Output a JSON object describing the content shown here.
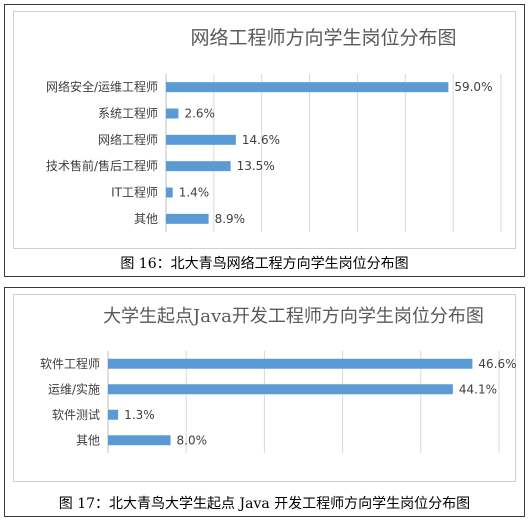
{
  "figures": [
    {
      "caption": "图 16：北大青鸟网络工程方向学生岗位分布图",
      "chart_data": {
        "type": "bar",
        "orientation": "horizontal",
        "title": "网络工程师方向学生岗位分布图",
        "categories": [
          "网络安全/运维工程师",
          "系统工程师",
          "网络工程师",
          "技术售前/售后工程师",
          "IT工程师",
          "其他"
        ],
        "values": [
          59.0,
          2.6,
          14.6,
          13.5,
          1.4,
          8.9
        ],
        "value_labels": [
          "59.0%",
          "2.6%",
          "14.6%",
          "13.5%",
          "1.4%",
          "8.9%"
        ],
        "xlim": [
          0,
          70
        ],
        "grid": true,
        "legend": "none",
        "colors": {
          "bar": "#5b9bd5",
          "grid": "#d9d9d9",
          "axis": "#bfbfbf",
          "text": "#404040",
          "title": "#595959"
        }
      }
    },
    {
      "caption": "图 17：北大青鸟大学生起点 Java 开发工程师方向学生岗位分布图",
      "chart_data": {
        "type": "bar",
        "orientation": "horizontal",
        "title": "大学生起点Java开发工程师方向学生岗位分布图",
        "categories": [
          "软件工程师",
          "运维/实施",
          "软件测试",
          "其他"
        ],
        "values": [
          46.6,
          44.1,
          1.3,
          8.0
        ],
        "value_labels": [
          "46.6%",
          "44.1%",
          "1.3%",
          "8.0%"
        ],
        "xlim": [
          0,
          50
        ],
        "grid": true,
        "legend": "none",
        "colors": {
          "bar": "#5b9bd5",
          "grid": "#d9d9d9",
          "axis": "#bfbfbf",
          "text": "#404040",
          "title": "#595959"
        }
      }
    }
  ]
}
